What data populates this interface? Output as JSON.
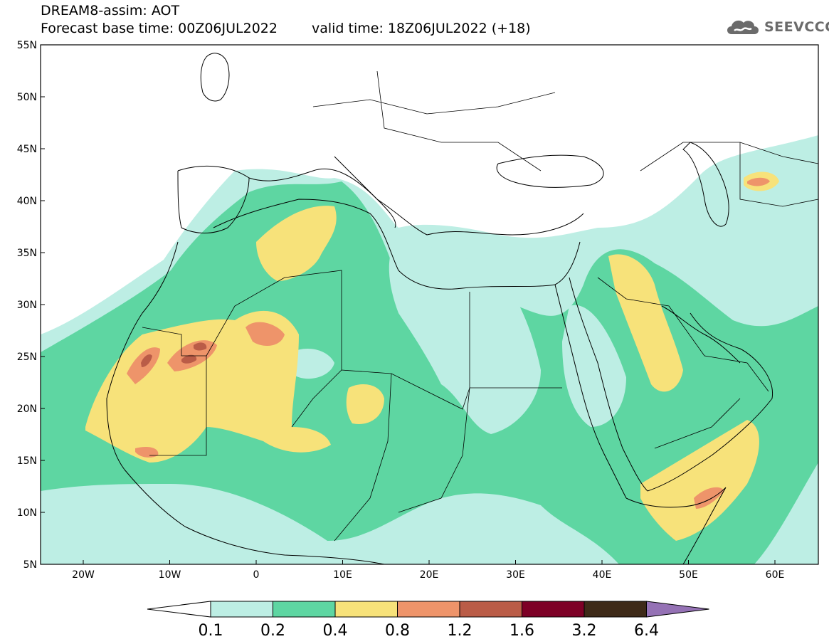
{
  "header": {
    "line1": "DREAM8-assim: AOT",
    "base_time": "Forecast base time: 00Z06JUL2022",
    "valid_time": "valid time: 18Z06JUL2022 (+18)"
  },
  "logo": {
    "text": "SEEVCCC",
    "icon": "cloud-logo-icon"
  },
  "map": {
    "lat_labels": [
      "55N",
      "50N",
      "45N",
      "40N",
      "35N",
      "30N",
      "25N",
      "20N",
      "15N",
      "10N",
      "5N"
    ],
    "lon_labels": [
      "20W",
      "10W",
      "0",
      "10E",
      "20E",
      "30E",
      "40E",
      "50E",
      "60E"
    ]
  },
  "colorbar": {
    "labels": [
      "0.1",
      "0.2",
      "0.4",
      "0.8",
      "1.2",
      "1.6",
      "3.2",
      "6.4"
    ],
    "colors": [
      "#ffffff",
      "#bdeee4",
      "#5ed6a2",
      "#f7e27a",
      "#ee946a",
      "#ba5c47",
      "#7d0026",
      "#3e2a18",
      "#9572b5"
    ]
  }
}
